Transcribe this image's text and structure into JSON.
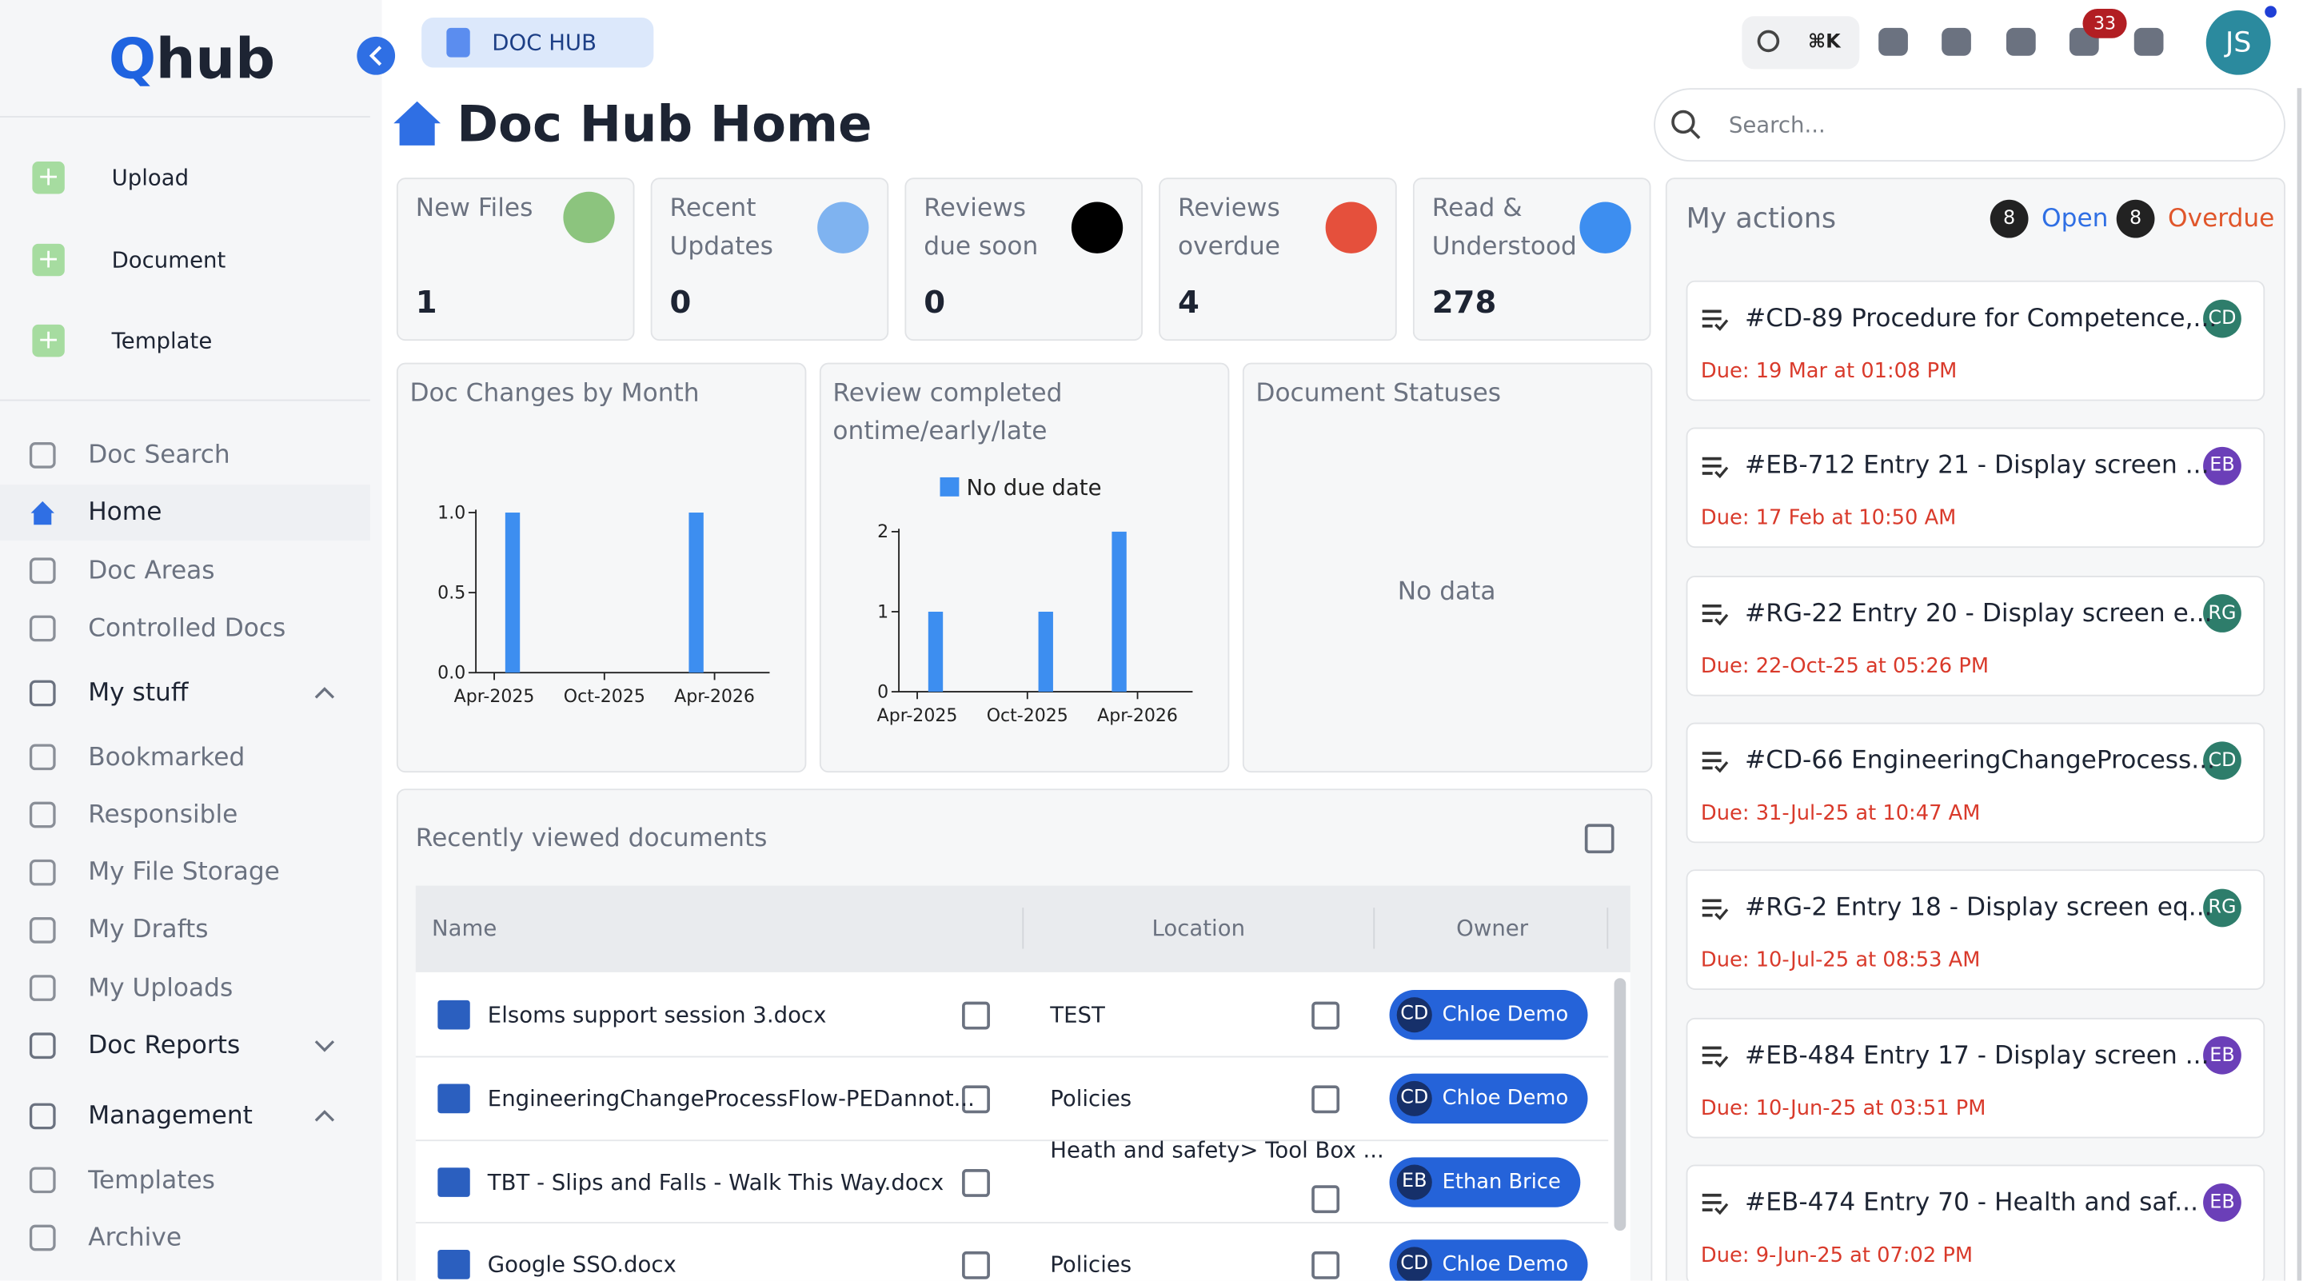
{
  "brand": {
    "mark": "Q",
    "name": "hub"
  },
  "app_switcher": "DOC HUB",
  "search_shortcut": "⌘K",
  "notifications": 33,
  "user_initials": "JS",
  "sidebar": {
    "create": [
      "Upload",
      "Document",
      "Template"
    ],
    "nav": [
      "Doc Search",
      "Home",
      "Doc Areas",
      "Controlled Docs"
    ],
    "sections": [
      {
        "title": "My stuff",
        "items": [
          "Bookmarked",
          "Responsible",
          "My File Storage",
          "My Drafts",
          "My Uploads"
        ]
      },
      {
        "title": "Doc Reports",
        "items": []
      },
      {
        "title": "Management",
        "items": [
          "Templates",
          "Archive"
        ]
      }
    ]
  },
  "page_title": "Doc Hub Home",
  "search_placeholder": "Search...",
  "stats": [
    {
      "label": "New Files",
      "value": 1,
      "color": "#8cc47e"
    },
    {
      "label": "Recent Updates",
      "value": 0,
      "color": "#7fb3f0"
    },
    {
      "label": "Reviews due soon",
      "value": 0,
      "color": "#000000"
    },
    {
      "label": "Reviews overdue",
      "value": 4,
      "color": "#e5503c"
    },
    {
      "label": "Read & Understood",
      "value": 278,
      "color": "#3d8ef0"
    }
  ],
  "charts": [
    {
      "type": "bar",
      "title": "Doc Changes by Month",
      "x": [
        "2025-05",
        "2026-03"
      ],
      "values": [
        1,
        1
      ],
      "color": "#3d8ef0",
      "xlim": [
        "2025-03",
        "2026-07"
      ],
      "xticks": [
        {
          "value": "2025-04",
          "label": "Apr-2025"
        },
        {
          "value": "2025-10",
          "label": "Oct-2025"
        },
        {
          "value": "2026-04",
          "label": "Apr-2026"
        }
      ],
      "ylim": [
        0,
        1
      ],
      "yticks": [
        {
          "value": 0,
          "label": "0.0"
        },
        {
          "value": 0.5,
          "label": "0.5"
        },
        {
          "value": 1,
          "label": "1.0"
        }
      ]
    },
    {
      "type": "bar",
      "title": "Review completed ontime/early/late",
      "x": [
        "2025-05",
        "2025-11",
        "2026-03"
      ],
      "series": [
        {
          "name": "No due date",
          "color": "#3d8ef0",
          "values": [
            1,
            1,
            2
          ]
        }
      ],
      "xlim": [
        "2025-03",
        "2026-07"
      ],
      "xticks": [
        {
          "value": "2025-04",
          "label": "Apr-2025"
        },
        {
          "value": "2025-10",
          "label": "Oct-2025"
        },
        {
          "value": "2026-04",
          "label": "Apr-2026"
        }
      ],
      "ylim": [
        0,
        2
      ],
      "yticks": [
        0,
        1,
        2
      ]
    },
    {
      "type": "empty",
      "title": "Document Statuses",
      "message": "No data"
    }
  ],
  "recent": {
    "title": "Recently viewed documents",
    "columns": [
      "Name",
      "Location",
      "Owner"
    ],
    "rows": [
      [
        "Elsoms support session 3.docx",
        "TEST",
        {
          "initials": "CD",
          "name": "Chloe Demo"
        }
      ],
      [
        "EngineeringChangeProcessFlow-PEDannot...",
        "Policies",
        {
          "initials": "CD",
          "name": "Chloe Demo"
        }
      ],
      [
        "TBT - Slips and Falls - Walk This Way.docx",
        "Heath and safety> Tool Box ...",
        {
          "initials": "EB",
          "name": "Ethan Brice"
        }
      ],
      [
        "Google SSO.docx",
        "Policies",
        {
          "initials": "CD",
          "name": "Chloe Demo"
        }
      ]
    ]
  },
  "actions": {
    "title": "My actions",
    "open_count": 8,
    "open_label": "Open",
    "overdue_count": 8,
    "overdue_label": "Overdue",
    "items": [
      {
        "title": "#CD-89 Procedure for Competence,...",
        "due": "Due: 19 Mar at 01:08 PM",
        "initials": "CD",
        "color": "#2e7d6b"
      },
      {
        "title": "#EB-712 Entry 21 - Display screen ...",
        "due": "Due: 17 Feb at 10:50 AM",
        "initials": "EB",
        "color": "#6b3fb8"
      },
      {
        "title": "#RG-22 Entry 20 - Display screen e...",
        "due": "Due: 22-Oct-25 at 05:26 PM",
        "initials": "RG",
        "color": "#2e7d6b"
      },
      {
        "title": "#CD-66 EngineeringChangeProcess...",
        "due": "Due: 31-Jul-25 at 10:47 AM",
        "initials": "CD",
        "color": "#2e7d6b"
      },
      {
        "title": "#RG-2 Entry 18 - Display screen eq...",
        "due": "Due: 10-Jul-25 at 08:53 AM",
        "initials": "RG",
        "color": "#2e7d6b"
      },
      {
        "title": "#EB-484 Entry 17 - Display screen ...",
        "due": "Due: 10-Jun-25 at 03:51 PM",
        "initials": "EB",
        "color": "#6b3fb8"
      },
      {
        "title": "#EB-474 Entry 70 - Health and saf...",
        "due": "Due: 9-Jun-25 at 07:02 PM",
        "initials": "EB",
        "color": "#6b3fb8"
      }
    ]
  }
}
